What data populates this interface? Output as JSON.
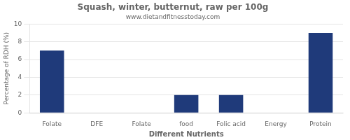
{
  "chart_data": {
    "type": "bar",
    "title": "Squash, winter, butternut, raw per 100g",
    "subtitle": "www.dietandfitnesstoday.com",
    "xlabel": "Different Nutrients",
    "ylabel": "Percentage of RDH (%)",
    "categories": [
      "Folate",
      "DFE",
      "Folate",
      "food",
      "Folic acid",
      "Energy",
      "Protein"
    ],
    "values": [
      7.0,
      0.0,
      0.0,
      2.0,
      2.0,
      0.0,
      9.0
    ],
    "color": "#1F3A7A",
    "ylim": [
      0,
      10
    ],
    "yticks": [
      0,
      2,
      4,
      6,
      8,
      10
    ],
    "grid": true
  }
}
